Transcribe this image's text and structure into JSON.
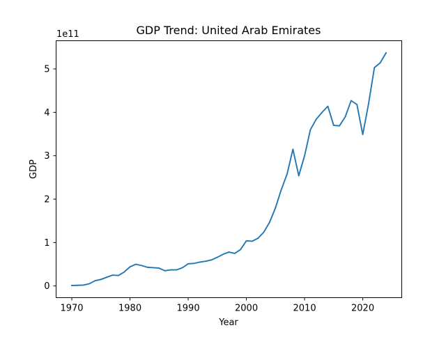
{
  "chart_data": {
    "type": "line",
    "title": "GDP Trend: United Arab Emirates",
    "xlabel": "Year",
    "ylabel": "GDP",
    "y_offset_label": "1e11",
    "xlim": [
      1967.3,
      2026.7
    ],
    "ylim": [
      -0.27,
      5.65
    ],
    "x_ticks": [
      1970,
      1980,
      1990,
      2000,
      2010,
      2020
    ],
    "y_ticks": [
      0,
      1,
      2,
      3,
      4,
      5
    ],
    "grid": false,
    "line_color": "#1f77b4",
    "series": [
      {
        "x": [
          1970,
          1971,
          1972,
          1973,
          1974,
          1975,
          1976,
          1977,
          1978,
          1979,
          1980,
          1981,
          1982,
          1983,
          1984,
          1985,
          1986,
          1987,
          1988,
          1989,
          1990,
          1991,
          1992,
          1993,
          1994,
          1995,
          1996,
          1997,
          1998,
          1999,
          2000,
          2001,
          2002,
          2003,
          2004,
          2005,
          2006,
          2007,
          2008,
          2009,
          2010,
          2011,
          2012,
          2013,
          2014,
          2015,
          2016,
          2017,
          2018,
          2019,
          2020,
          2021,
          2022,
          2023,
          2024
        ],
        "values": [
          0.01,
          0.015,
          0.02,
          0.05,
          0.12,
          0.15,
          0.2,
          0.25,
          0.24,
          0.32,
          0.44,
          0.5,
          0.47,
          0.43,
          0.42,
          0.41,
          0.35,
          0.37,
          0.37,
          0.42,
          0.51,
          0.52,
          0.55,
          0.57,
          0.6,
          0.66,
          0.73,
          0.78,
          0.75,
          0.84,
          1.04,
          1.03,
          1.1,
          1.24,
          1.47,
          1.8,
          2.22,
          2.58,
          3.15,
          2.54,
          3.0,
          3.6,
          3.84,
          4.0,
          4.14,
          3.7,
          3.69,
          3.9,
          4.27,
          4.18,
          3.49,
          4.2,
          5.03,
          5.14,
          5.37
        ]
      }
    ]
  }
}
